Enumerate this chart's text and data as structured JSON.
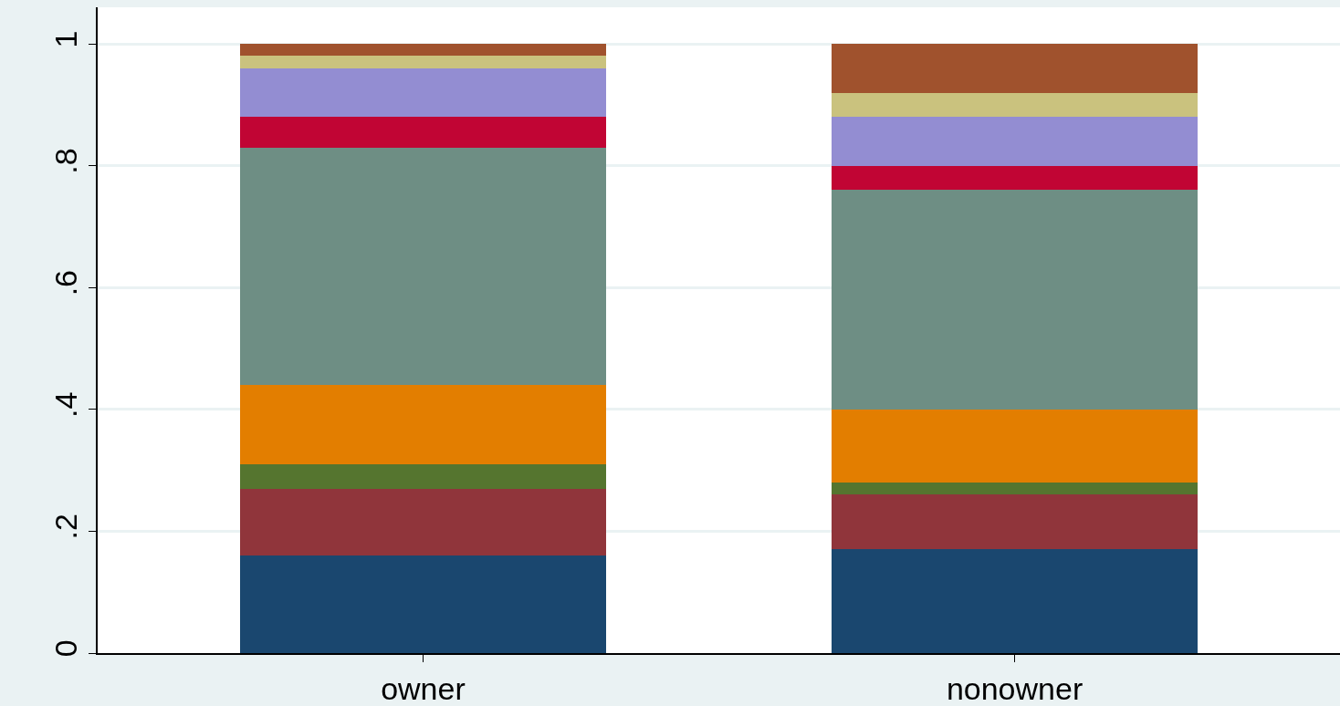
{
  "chart_data": {
    "type": "bar",
    "stacked": true,
    "categories": [
      "owner",
      "nonowner"
    ],
    "series": [
      {
        "color": "#1a476f",
        "values": [
          0.16,
          0.17
        ]
      },
      {
        "color": "#90353b",
        "values": [
          0.11,
          0.09
        ]
      },
      {
        "color": "#55752f",
        "values": [
          0.04,
          0.02
        ]
      },
      {
        "color": "#e37e00",
        "values": [
          0.13,
          0.12
        ]
      },
      {
        "color": "#6e8e84",
        "values": [
          0.39,
          0.36
        ]
      },
      {
        "color": "#c10534",
        "values": [
          0.05,
          0.04
        ]
      },
      {
        "color": "#938dd2",
        "values": [
          0.08,
          0.08
        ]
      },
      {
        "color": "#cac27e",
        "values": [
          0.02,
          0.04
        ]
      },
      {
        "color": "#a0522d",
        "values": [
          0.02,
          0.08
        ]
      }
    ],
    "ylim": [
      0,
      1.06
    ],
    "yticks": [
      0,
      {
        "value": 0.2,
        "label": ".2"
      },
      {
        "value": 0.4,
        "label": ".4"
      },
      {
        "value": 0.6,
        "label": ".6"
      },
      {
        "value": 0.8,
        "label": ".8"
      },
      1
    ],
    "grid": "y"
  }
}
